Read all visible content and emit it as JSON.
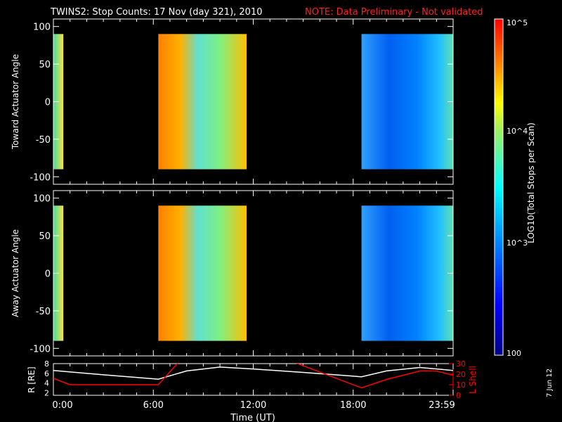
{
  "header": {
    "title": "TWINS2: Stop Counts: 17 Nov (day 321), 2010",
    "note": "NOTE: Data Preliminary - Not validated"
  },
  "date_stamp": "7 Jun 12",
  "colors": {
    "note": "#ff2020",
    "lshell": "#ff0000",
    "rline": "#ffffff"
  },
  "chart_data": [
    {
      "type": "heatmap",
      "title": "Toward",
      "ylabel": "Toward Actuator Angle",
      "ylim": [
        -110,
        110
      ],
      "yticks": [
        100,
        50,
        0,
        -50,
        -100
      ],
      "xlim": [
        0,
        24
      ],
      "data_intervals_hours": [
        [
          0,
          0.6
        ],
        [
          6.3,
          11.6
        ],
        [
          18.5,
          24
        ]
      ]
    },
    {
      "type": "heatmap",
      "ylabel": "Away Actuator Angle",
      "ylim": [
        -110,
        110
      ],
      "yticks": [
        100,
        50,
        0,
        -50,
        -100
      ],
      "xlim": [
        0,
        24
      ],
      "data_intervals_hours": [
        [
          0,
          0.6
        ],
        [
          6.3,
          11.6
        ],
        [
          18.5,
          24
        ]
      ]
    },
    {
      "type": "line",
      "ylabel": "R [RE]",
      "y2label": "L Shell",
      "xlabel": "Time (UT)",
      "ylim": [
        1.5,
        8
      ],
      "y2lim": [
        0,
        30
      ],
      "yticks": [
        "8",
        "6",
        "4",
        "2"
      ],
      "y2ticks": [
        "30",
        "20",
        "10",
        "0"
      ],
      "xticks": [
        "0:00",
        "6:00",
        "12:00",
        "18:00",
        "23:59"
      ],
      "xtick_hours": [
        0,
        6,
        12,
        18,
        24
      ],
      "series": [
        {
          "name": "R",
          "x": [
            0,
            3,
            6.3,
            8,
            10,
            12,
            15,
            18.5,
            20,
            22,
            24
          ],
          "y": [
            6.6,
            5.7,
            4.8,
            6.5,
            7.3,
            6.9,
            6.2,
            5.3,
            6.5,
            7.2,
            6.6
          ]
        },
        {
          "name": "L Shell",
          "x": [
            0,
            1,
            6.3,
            7.5,
            14.5,
            18.5,
            20,
            22,
            23,
            24
          ],
          "y": [
            16,
            10,
            10,
            31,
            31,
            7,
            15,
            23,
            23,
            19
          ]
        }
      ]
    },
    {
      "type": "colorbar",
      "label": "LOG10(Total Stops per Scan)",
      "ticks": [
        "10^5",
        "10^4",
        "10^3",
        "100"
      ],
      "range": [
        100,
        100000
      ]
    }
  ]
}
